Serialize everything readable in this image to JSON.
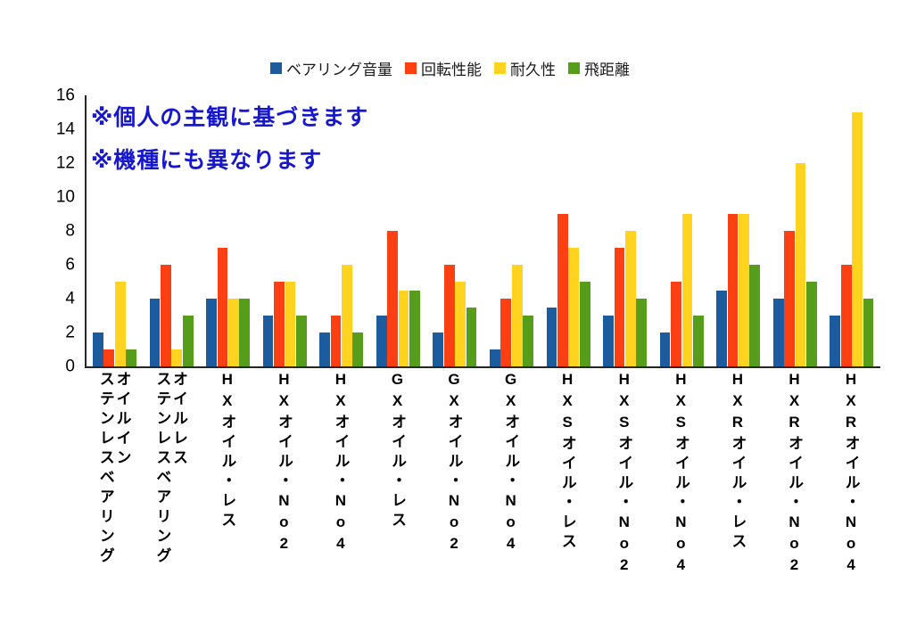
{
  "chart_data": {
    "type": "bar",
    "title": "",
    "xlabel": "",
    "ylabel": "",
    "ylim": [
      0,
      16
    ],
    "yticks": [
      0,
      2,
      4,
      6,
      8,
      10,
      12,
      14,
      16
    ],
    "grid": false,
    "legend_position": "top",
    "background_color": "#ffffff",
    "annotations": [
      "※個人の主観に基づきます",
      "※機種にも異なります"
    ],
    "annotation_color": "#1717ce",
    "categories": [
      "オイルイン\nステンレスベアリング",
      "オイルレス\nステンレスベアリング",
      "HXオイル・レス",
      "HXオイル・No2",
      "HXオイル・No4",
      "GXオイル・レス",
      "GXオイル・No2",
      "GXオイル・No4",
      "HXSオイル・レス",
      "HXSオイル・No2",
      "HXSオイル・No4",
      "HXRオイル・レス",
      "HXRオイル・No2",
      "HXRオイル・No4"
    ],
    "series": [
      {
        "name": "ベアリング音量",
        "color": "#1c5b9e",
        "values": [
          2,
          4,
          4,
          3,
          2,
          3,
          2,
          1,
          3.5,
          3,
          2,
          4.5,
          4,
          3
        ]
      },
      {
        "name": "回転性能",
        "color": "#fc4013",
        "values": [
          1,
          6,
          7,
          5,
          3,
          8,
          6,
          4,
          9,
          7,
          5,
          9,
          8,
          6
        ]
      },
      {
        "name": "耐久性",
        "color": "#ffd320",
        "values": [
          5,
          1,
          4,
          5,
          6,
          4.5,
          5,
          6,
          7,
          8,
          9,
          9,
          12,
          15
        ]
      },
      {
        "name": "飛距離",
        "color": "#579d1c",
        "values": [
          1,
          3,
          4,
          3,
          2,
          4.5,
          3.5,
          3,
          5,
          4,
          3,
          6,
          5,
          4
        ]
      }
    ]
  }
}
